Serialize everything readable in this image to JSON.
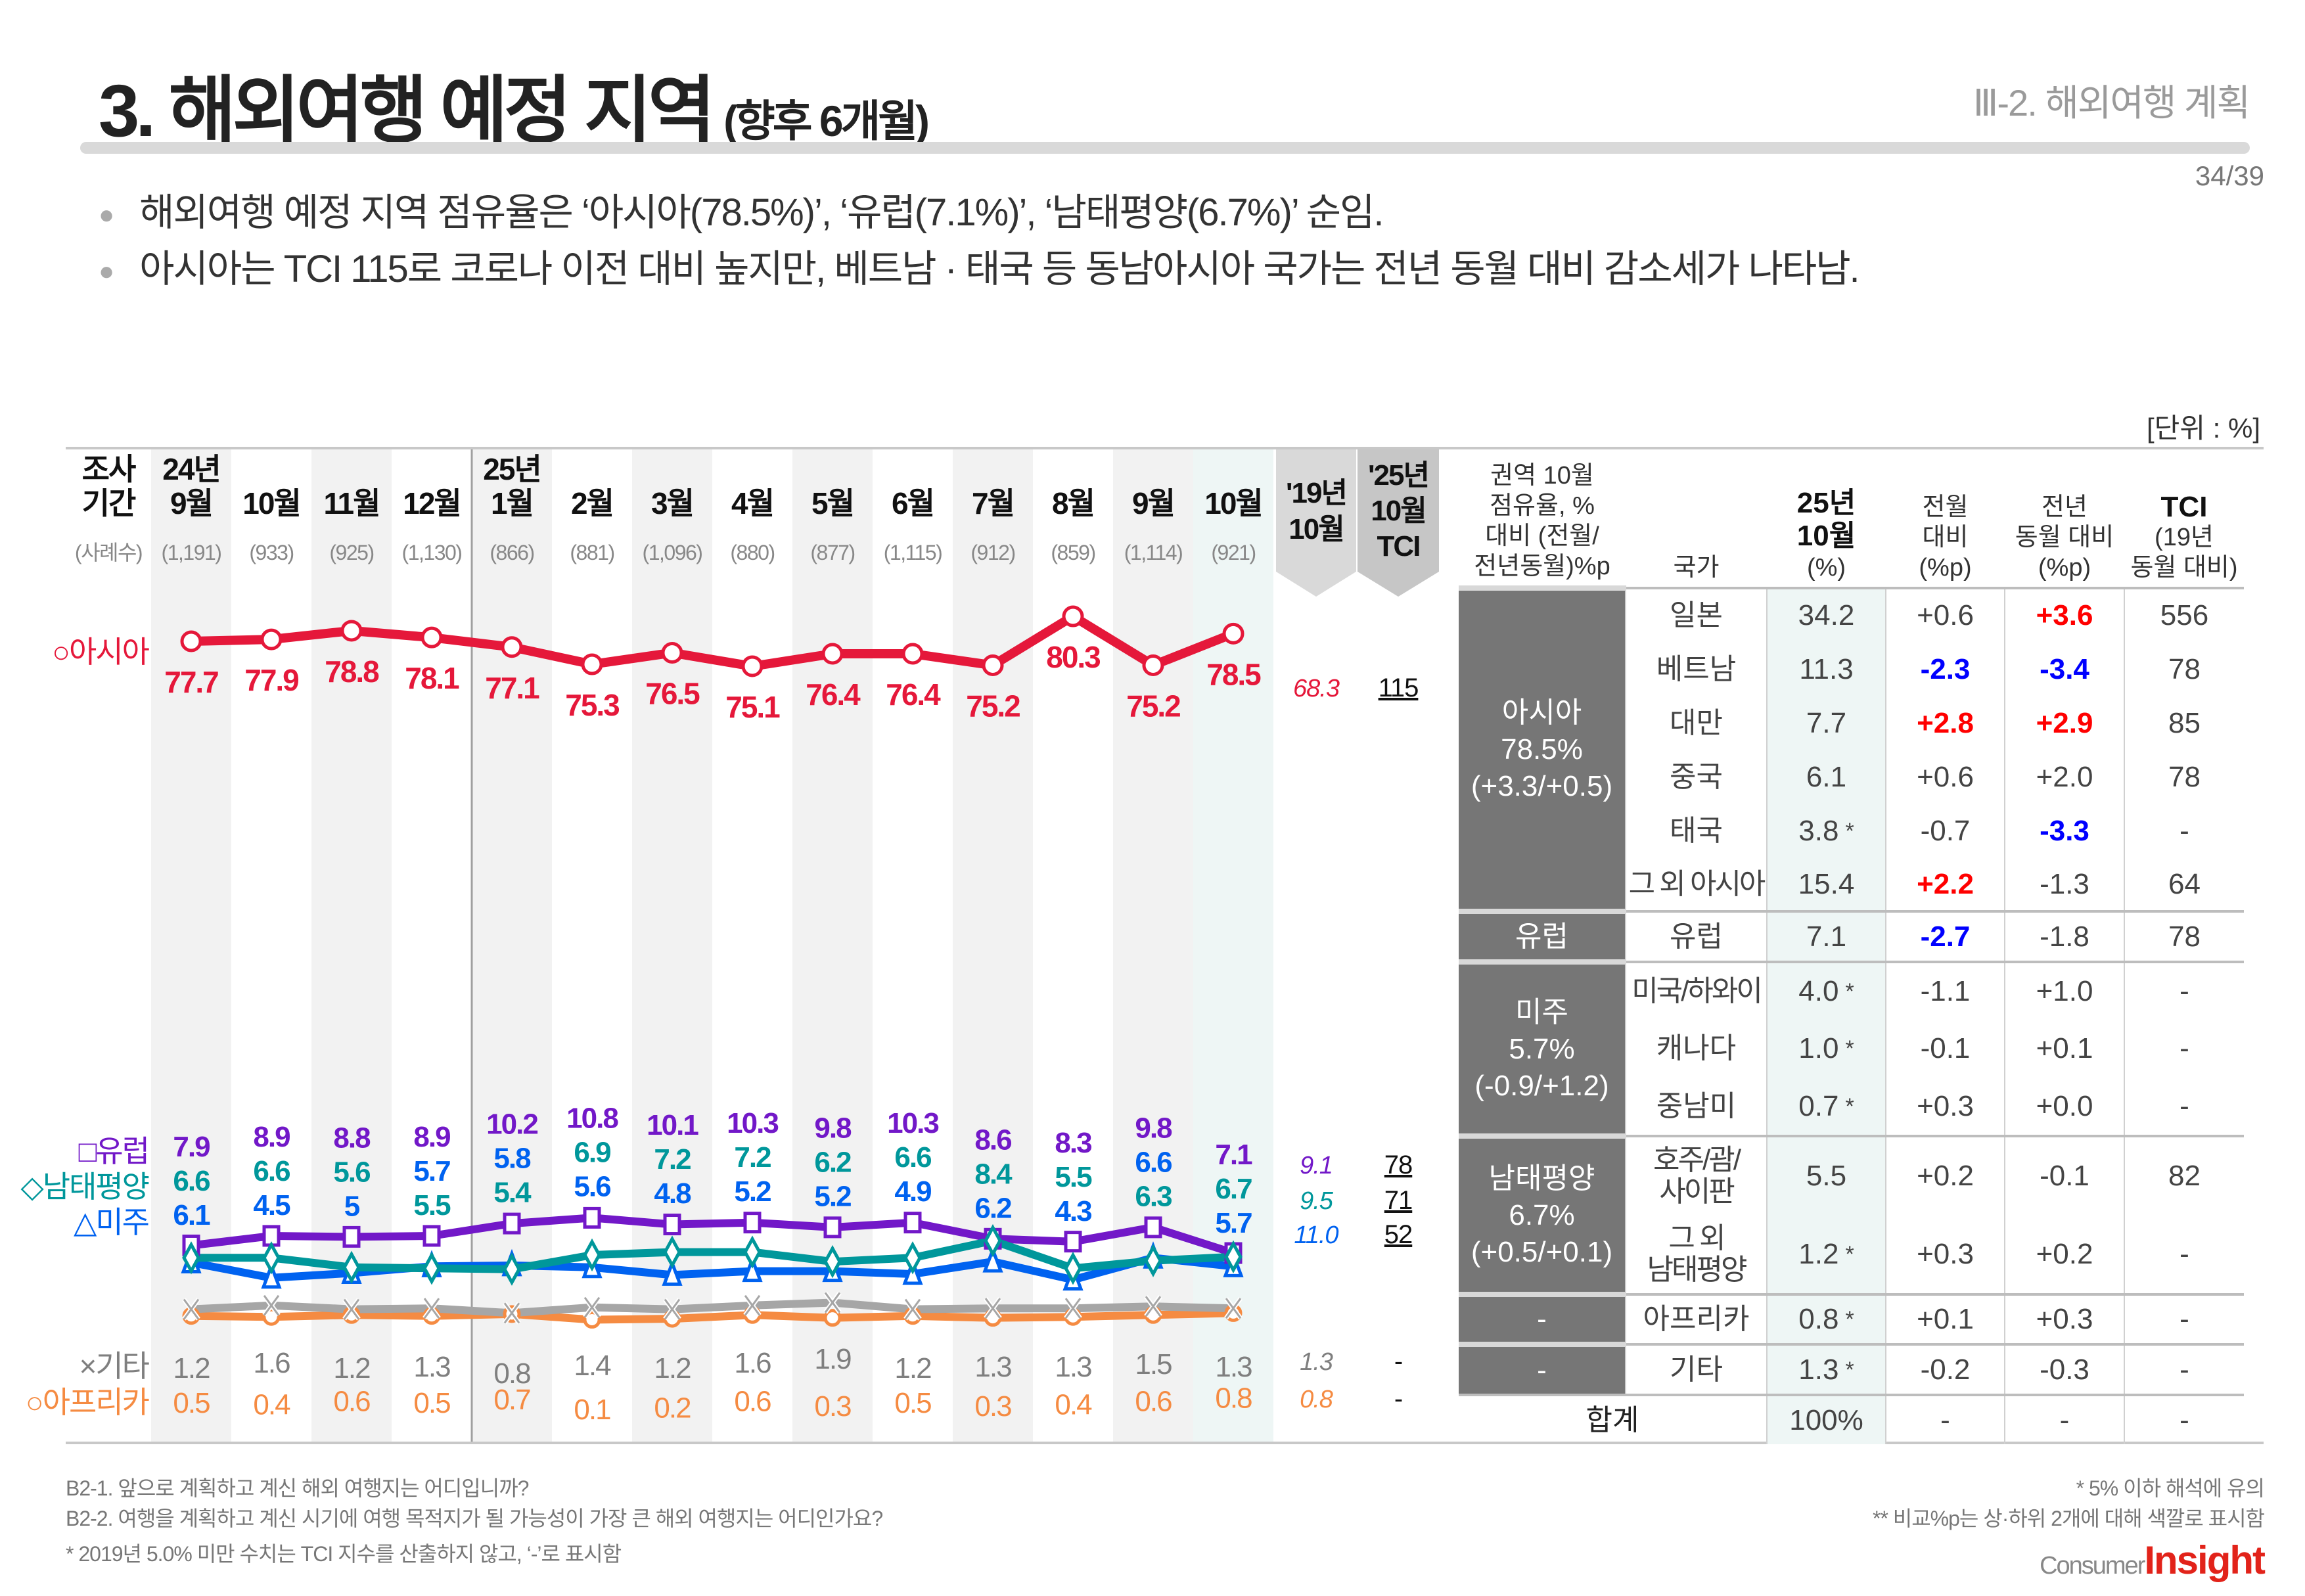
{
  "header": {
    "title": "3. 해외여행 예정 지역",
    "title_sub": "(향후 6개월)",
    "section": "Ⅲ-2. 해외여행 계획",
    "page": "34/39"
  },
  "bullets": [
    "해외여행 예정 지역 점유율은 ‘아시아(78.5%)’, ‘유럽(7.1%)’, ‘남태평양(6.7%)’ 순임.",
    "아시아는 TCI 115로 코로나 이전 대비 높지만, 베트남 · 태국 등 동남아시아 국가는 전년 동월 대비 감소세가 나타남."
  ],
  "unit": "[단위 : %]",
  "chart_data": {
    "type": "line",
    "period_label": [
      "조사",
      "기간"
    ],
    "sample_label": "(사례수)",
    "categories": [
      {
        "year": "24년",
        "month": "9월",
        "n": "(1,191)"
      },
      {
        "year": "",
        "month": "10월",
        "n": "(933)"
      },
      {
        "year": "",
        "month": "11월",
        "n": "(925)"
      },
      {
        "year": "",
        "month": "12월",
        "n": "(1,130)"
      },
      {
        "year": "25년",
        "month": "1월",
        "n": "(866)"
      },
      {
        "year": "",
        "month": "2월",
        "n": "(881)"
      },
      {
        "year": "",
        "month": "3월",
        "n": "(1,096)"
      },
      {
        "year": "",
        "month": "4월",
        "n": "(880)"
      },
      {
        "year": "",
        "month": "5월",
        "n": "(877)"
      },
      {
        "year": "",
        "month": "6월",
        "n": "(1,115)"
      },
      {
        "year": "",
        "month": "7월",
        "n": "(912)"
      },
      {
        "year": "",
        "month": "8월",
        "n": "(859)"
      },
      {
        "year": "",
        "month": "9월",
        "n": "(1,114)"
      },
      {
        "year": "",
        "month": "10월",
        "n": "(921)"
      }
    ],
    "series": [
      {
        "name": "아시아",
        "legend": "○아시아",
        "marker": "circle",
        "color": "#e5183a",
        "values": [
          77.7,
          77.9,
          78.8,
          78.1,
          77.1,
          75.3,
          76.5,
          75.1,
          76.4,
          76.4,
          75.2,
          80.3,
          75.2,
          78.5
        ]
      },
      {
        "name": "유럽",
        "legend": "□유럽",
        "marker": "square",
        "color": "#7218c8",
        "values": [
          7.9,
          8.9,
          8.8,
          8.9,
          10.2,
          10.8,
          10.1,
          10.3,
          9.8,
          10.3,
          8.6,
          8.3,
          9.8,
          7.1
        ]
      },
      {
        "name": "남태평양",
        "legend": "◇남태평양",
        "marker": "diamond",
        "color": "#00979b",
        "values": [
          6.6,
          6.6,
          5.6,
          5.5,
          5.4,
          6.9,
          7.2,
          7.2,
          6.2,
          6.6,
          8.4,
          5.5,
          6.3,
          6.7
        ]
      },
      {
        "name": "미주",
        "legend": "△미주",
        "marker": "triangle",
        "color": "#0062f0",
        "values": [
          6.1,
          4.5,
          5.0,
          5.7,
          5.8,
          5.6,
          4.8,
          5.2,
          5.2,
          4.9,
          6.2,
          4.3,
          6.6,
          5.7
        ]
      },
      {
        "name": "기타",
        "legend": "×기타",
        "marker": "cross",
        "color": "#a6a6a6",
        "label_color": "#7f7f7f",
        "values": [
          1.2,
          1.6,
          1.2,
          1.3,
          0.8,
          1.4,
          1.2,
          1.6,
          1.9,
          1.2,
          1.3,
          1.3,
          1.5,
          1.3
        ]
      },
      {
        "name": "아프리카",
        "legend": "○아프리카",
        "marker": "circle",
        "color": "#f58b42",
        "values": [
          0.5,
          0.4,
          0.6,
          0.5,
          0.7,
          0.1,
          0.2,
          0.6,
          0.3,
          0.5,
          0.3,
          0.4,
          0.6,
          0.8
        ]
      }
    ],
    "reference_1910": {
      "label": [
        "'19년",
        "10월"
      ],
      "values": [
        "68.3",
        "9.1",
        "9.5",
        "11.0",
        "1.3",
        "0.8"
      ]
    },
    "tci_2510": {
      "label": [
        "'25년",
        "10월",
        "TCI"
      ],
      "values": [
        "115",
        "78",
        "71",
        "52",
        "-",
        "-"
      ]
    },
    "grid": false
  },
  "table": {
    "headers": [
      "권역 10월\n점유율, %\n대비 (전월/\n전년동월)%p",
      "국가",
      "25년\n10월",
      "(%)",
      "전월\n대비\n(%p)",
      "전년\n동월 대비\n(%p)",
      "TCI",
      "(19년\n동월 대비)"
    ],
    "groups": [
      {
        "region": "아시아\n78.5%\n(+3.3/+0.5)",
        "rows": [
          {
            "country": "일본",
            "value": "34.2",
            "star": "",
            "mom": "+0.6",
            "mom_hl": "",
            "yoy": "+3.6",
            "yoy_hl": "up",
            "tci": "556"
          },
          {
            "country": "베트남",
            "value": "11.3",
            "star": "",
            "mom": "-2.3",
            "mom_hl": "down",
            "yoy": "-3.4",
            "yoy_hl": "down",
            "tci": "78"
          },
          {
            "country": "대만",
            "value": "7.7",
            "star": "",
            "mom": "+2.8",
            "mom_hl": "up",
            "yoy": "+2.9",
            "yoy_hl": "up",
            "tci": "85"
          },
          {
            "country": "중국",
            "value": "6.1",
            "star": "",
            "mom": "+0.6",
            "mom_hl": "",
            "yoy": "+2.0",
            "yoy_hl": "",
            "tci": "78"
          },
          {
            "country": "태국",
            "value": "3.8",
            "star": "*",
            "mom": "-0.7",
            "mom_hl": "",
            "yoy": "-3.3",
            "yoy_hl": "down",
            "tci": "-"
          },
          {
            "country": "그 외 아시아",
            "value": "15.4",
            "star": "",
            "mom": "+2.2",
            "mom_hl": "up",
            "yoy": "-1.3",
            "yoy_hl": "",
            "tci": "64"
          }
        ]
      },
      {
        "region": "유럽",
        "rows": [
          {
            "country": "유럽",
            "value": "7.1",
            "star": "",
            "mom": "-2.7",
            "mom_hl": "down",
            "yoy": "-1.8",
            "yoy_hl": "",
            "tci": "78"
          }
        ]
      },
      {
        "region": "미주\n5.7%\n(-0.9/+1.2)",
        "rows": [
          {
            "country": "미국/하와이",
            "value": "4.0",
            "star": "*",
            "mom": "-1.1",
            "mom_hl": "",
            "yoy": "+1.0",
            "yoy_hl": "",
            "tci": "-"
          },
          {
            "country": "캐나다",
            "value": "1.0",
            "star": "*",
            "mom": "-0.1",
            "mom_hl": "",
            "yoy": "+0.1",
            "yoy_hl": "",
            "tci": "-"
          },
          {
            "country": "중남미",
            "value": "0.7",
            "star": "*",
            "mom": "+0.3",
            "mom_hl": "",
            "yoy": "+0.0",
            "yoy_hl": "",
            "tci": "-"
          }
        ]
      },
      {
        "region": "남태평양\n6.7%\n(+0.5/+0.1)",
        "rows": [
          {
            "country": "호주/괌/\n사이판",
            "value": "5.5",
            "star": "",
            "mom": "+0.2",
            "mom_hl": "",
            "yoy": "-0.1",
            "yoy_hl": "",
            "tci": "82"
          },
          {
            "country": "그 외\n남태평양",
            "value": "1.2",
            "star": "*",
            "mom": "+0.3",
            "mom_hl": "",
            "yoy": "+0.2",
            "yoy_hl": "",
            "tci": "-"
          }
        ]
      },
      {
        "region": "-",
        "rows": [
          {
            "country": "아프리카",
            "value": "0.8",
            "star": "*",
            "mom": "+0.1",
            "mom_hl": "",
            "yoy": "+0.3",
            "yoy_hl": "",
            "tci": "-"
          }
        ]
      },
      {
        "region": "-",
        "rows": [
          {
            "country": "기타",
            "value": "1.3",
            "star": "*",
            "mom": "-0.2",
            "mom_hl": "",
            "yoy": "-0.3",
            "yoy_hl": "",
            "tci": "-"
          }
        ]
      }
    ],
    "total": {
      "label": "합계",
      "value": "100%",
      "mom": "-",
      "yoy": "-",
      "tci": "-"
    },
    "highlight_colors": {
      "up": "#ff0000",
      "down": "#0000ff"
    }
  },
  "footnotes": {
    "left": [
      "B2-1. 앞으로 계획하고 계신 해외 여행지는 어디입니까?",
      "B2-2. 여행을 계획하고 계신 시기에 여행 목적지가 될 가능성이 가장 큰 해외 여행지는 어디인가요?",
      "* 2019년 5.0% 미만 수치는 TCI 지수를 산출하지 않고, ‘-’로 표시함"
    ],
    "right": [
      "* 5% 이하 해석에 유의",
      "** 비교%p는 상·하위 2개에 대해 색깔로 표시함"
    ]
  },
  "logo": {
    "text": "ConsumerInsight",
    "part1": "Consumer",
    "part2": "Insight"
  }
}
